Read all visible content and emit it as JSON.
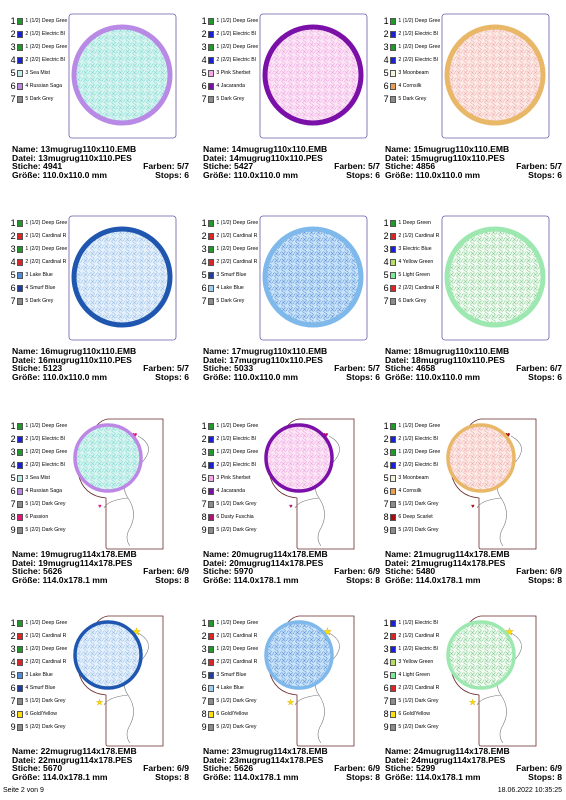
{
  "colors": {
    "Deep Gree": "#1f9a2a",
    "Electric Bl": "#1a1fd8",
    "Sea Mist": "#c2ece8",
    "Russian Saga": "#bd87e6",
    "Dark Grey": "#8c8c8c",
    "Pink Sherbet": "#f7a6e8",
    "Jacaranda": "#7a10a8",
    "Moonbeam": "#f5f2dc",
    "Cornsilk": "#e8a050",
    "Cardinal R": "#e02424",
    "Lake Blue": "#4f8fd6",
    "Smurf Blue": "#1e3fa0",
    "Smurf Blu": "#1e3fa0",
    "Lake Blu": "#9fd0f2",
    "Dark Green": "#1f9a2a",
    "Yellow Green": "#b8e060",
    "Light Green": "#7de89a",
    "Passion": "#e8157a",
    "Dusty Fuschia": "#b0126f",
    "Deep Scarlet": "#a80c10",
    "Gold/Yellow": "#ffe000"
  },
  "cards": [
    {
      "name": "Name: 13mugrug110x110.EMB",
      "datei": "Datei: 13mugrug110x110.PES",
      "stiche": "Stiche: 4941",
      "farben": "Farben: 5/7",
      "groesse": "Größe: 110.0x110.0 mm",
      "stops": "Stops: 6",
      "shape": "square",
      "ring": "#b88ae6",
      "fill": "#d8f4f0",
      "motif": "#7ad8d0",
      "heart": "",
      "legend": [
        {
          "n": "1",
          "label": "1 (1/2) Deep Gree",
          "c": "Deep Gree"
        },
        {
          "n": "2",
          "label": "2 (1/2) Electric Bl",
          "c": "Electric Bl"
        },
        {
          "n": "3",
          "label": "1 (2/2) Deep Gree",
          "c": "Deep Gree"
        },
        {
          "n": "4",
          "label": "2 (2/2) Electric Bl",
          "c": "Electric Bl"
        },
        {
          "n": "5",
          "label": "3 Sea Mist",
          "c": "Sea Mist"
        },
        {
          "n": "6",
          "label": "4 Russian Saga",
          "c": "Russian Saga"
        },
        {
          "n": "7",
          "label": "5 Dark Grey",
          "c": "Dark Grey"
        }
      ]
    },
    {
      "name": "Name: 14mugrug110x110.EMB",
      "datei": "Datei: 14mugrug110x110.PES",
      "stiche": "Stiche: 5427",
      "farben": "Farben: 5/7",
      "groesse": "Größe: 110.0x110.0 mm",
      "stops": "Stops: 6",
      "shape": "square",
      "ring": "#7a10a8",
      "fill": "#fbe6f6",
      "motif": "#f0a0e0",
      "heart": "",
      "legend": [
        {
          "n": "1",
          "label": "1 (1/2) Deep Gree",
          "c": "Deep Gree"
        },
        {
          "n": "2",
          "label": "2 (1/2) Electric Bl",
          "c": "Electric Bl"
        },
        {
          "n": "3",
          "label": "1 (2/2) Deep Gree",
          "c": "Deep Gree"
        },
        {
          "n": "4",
          "label": "2 (2/2) Electric Bl",
          "c": "Electric Bl"
        },
        {
          "n": "5",
          "label": "3 Pink Sherbet",
          "c": "Pink Sherbet"
        },
        {
          "n": "6",
          "label": "4 Jacaranda",
          "c": "Jacaranda"
        },
        {
          "n": "7",
          "label": "5 Dark Grey",
          "c": "Dark Grey"
        }
      ]
    },
    {
      "name": "Name: 15mugrug110x110.EMB",
      "datei": "Datei: 15mugrug110x110.PES",
      "stiche": "Stiche: 4856",
      "farben": "Farben: 5/7",
      "groesse": "Größe: 110.0x110.0 mm",
      "stops": "Stops: 6",
      "shape": "square",
      "ring": "#e8b868",
      "fill": "#fbeae6",
      "motif": "#f0a8a8",
      "heart": "",
      "legend": [
        {
          "n": "1",
          "label": "1 (1/2) Deep Gree",
          "c": "Deep Gree"
        },
        {
          "n": "2",
          "label": "2 (1/2) Electric Bl",
          "c": "Electric Bl"
        },
        {
          "n": "3",
          "label": "1 (2/2) Deep Gree",
          "c": "Deep Gree"
        },
        {
          "n": "4",
          "label": "2 (2/2) Electric Bl",
          "c": "Electric Bl"
        },
        {
          "n": "5",
          "label": "3 Moonbeam",
          "c": "Moonbeam"
        },
        {
          "n": "6",
          "label": "4 Cornsilk",
          "c": "Cornsilk"
        },
        {
          "n": "7",
          "label": "5 Dark Grey",
          "c": "Dark Grey"
        }
      ]
    },
    {
      "name": "Name: 16mugrug110x110.EMB",
      "datei": "Datei: 16mugrug110x110.PES",
      "stiche": "Stiche: 5123",
      "farben": "Farben: 5/7",
      "groesse": "Größe: 110.0x110.0 mm",
      "stops": "Stops: 6",
      "shape": "square",
      "ring": "#1e56b0",
      "fill": "#e6f0fb",
      "motif": "#90bce8",
      "heart": "",
      "legend": [
        {
          "n": "1",
          "label": "1 (1/2) Deep Gree",
          "c": "Deep Gree"
        },
        {
          "n": "2",
          "label": "2 (1/2) Cardinal R",
          "c": "Cardinal R"
        },
        {
          "n": "3",
          "label": "1 (2/2) Deep Gree",
          "c": "Deep Gree"
        },
        {
          "n": "4",
          "label": "2 (2/2) Cardinal R",
          "c": "Cardinal R"
        },
        {
          "n": "5",
          "label": "3 Lake Blue",
          "c": "Lake Blue"
        },
        {
          "n": "6",
          "label": "4 Smurf Blue",
          "c": "Smurf Blue"
        },
        {
          "n": "7",
          "label": "5 Dark Grey",
          "c": "Dark Grey"
        }
      ]
    },
    {
      "name": "Name: 17mugrug110x110.EMB",
      "datei": "Datei: 17mugrug110x110.PES",
      "stiche": "Stiche: 5033",
      "farben": "Farben: 5/7",
      "groesse": "Größe: 110.0x110.0 mm",
      "stops": "Stops: 6",
      "shape": "square",
      "ring": "#7fb8ea",
      "fill": "#c8e2f8",
      "motif": "#5a90d8",
      "heart": "",
      "legend": [
        {
          "n": "1",
          "label": "1 (1/2) Deep Gree",
          "c": "Deep Gree"
        },
        {
          "n": "2",
          "label": "2 (1/2) Cardinal R",
          "c": "Cardinal R"
        },
        {
          "n": "3",
          "label": "1 (2/2) Deep Gree",
          "c": "Deep Gree"
        },
        {
          "n": "4",
          "label": "2 (2/2) Cardinal R",
          "c": "Cardinal R"
        },
        {
          "n": "5",
          "label": "3 Smurf Blue",
          "c": "Smurf Blu"
        },
        {
          "n": "6",
          "label": "4 Lake Blue",
          "c": "Lake Blu"
        },
        {
          "n": "7",
          "label": "5 Dark Grey",
          "c": "Dark Grey"
        }
      ]
    },
    {
      "name": "Name: 18mugrug110x110.EMB",
      "datei": "Datei: 18mugrug110x110.PES",
      "stiche": "Stiche: 4658",
      "farben": "Farben: 6/7",
      "groesse": "Größe: 110.0x110.0 mm",
      "stops": "Stops: 6",
      "shape": "square",
      "ring": "#9de8b0",
      "fill": "#f2fbf2",
      "motif": "#7cc88a",
      "heart": "",
      "legend": [
        {
          "n": "1",
          "label": "1 Deep Green",
          "c": "Dark Green"
        },
        {
          "n": "2",
          "label": "2 (1/2) Cardinal R",
          "c": "Cardinal R"
        },
        {
          "n": "3",
          "label": "3 Electric Blue",
          "c": "Electric Bl"
        },
        {
          "n": "4",
          "label": "4 Yellow Green",
          "c": "Yellow Green"
        },
        {
          "n": "5",
          "label": "5 Light Green",
          "c": "Light Green"
        },
        {
          "n": "6",
          "label": "2 (2/2) Cardinal R",
          "c": "Cardinal R"
        },
        {
          "n": "7",
          "label": "6 Dark Grey",
          "c": "Dark Grey"
        }
      ]
    },
    {
      "name": "Name: 19mugrug114x178.EMB",
      "datei": "Datei: 19mugrug114x178.PES",
      "stiche": "Stiche: 5626",
      "farben": "Farben: 6/9",
      "groesse": "Größe: 114.0x178.1 mm",
      "stops": "Stops: 8",
      "shape": "tall",
      "ring": "#bd87e6",
      "fill": "#d8f4f0",
      "motif": "#7ad8d0",
      "heart": "#e8157a",
      "legend": [
        {
          "n": "1",
          "label": "1 (1/2) Deep Gree",
          "c": "Deep Gree"
        },
        {
          "n": "2",
          "label": "2 (1/2) Electric Bl",
          "c": "Electric Bl"
        },
        {
          "n": "3",
          "label": "1 (2/2) Deep Gree",
          "c": "Deep Gree"
        },
        {
          "n": "4",
          "label": "2 (2/2) Electric Bl",
          "c": "Electric Bl"
        },
        {
          "n": "5",
          "label": "3 Sea Mist",
          "c": "Sea Mist"
        },
        {
          "n": "6",
          "label": "4 Russian Saga",
          "c": "Russian Saga"
        },
        {
          "n": "7",
          "label": "5 (1/2) Dark Grey",
          "c": "Dark Grey"
        },
        {
          "n": "8",
          "label": "6 Passion",
          "c": "Passion"
        },
        {
          "n": "9",
          "label": "5 (2/2) Dark Grey",
          "c": "Dark Grey"
        }
      ]
    },
    {
      "name": "Name: 20mugrug114x178.EMB",
      "datei": "Datei: 20mugrug114x178.PES",
      "stiche": "Stiche: 5970",
      "farben": "Farben: 6/9",
      "groesse": "Größe: 114.0x178.1 mm",
      "stops": "Stops: 8",
      "shape": "tall",
      "ring": "#7a10a8",
      "fill": "#fbe6f6",
      "motif": "#f0a0e0",
      "heart": "#b0126f",
      "legend": [
        {
          "n": "1",
          "label": "1 (1/2) Deep Gree",
          "c": "Deep Gree"
        },
        {
          "n": "2",
          "label": "2 (1/2) Electric Bl",
          "c": "Electric Bl"
        },
        {
          "n": "3",
          "label": "1 (2/2) Deep Gree",
          "c": "Deep Gree"
        },
        {
          "n": "4",
          "label": "2 (2/2) Electric Bl",
          "c": "Electric Bl"
        },
        {
          "n": "5",
          "label": "3 Pink Sherbet",
          "c": "Pink Sherbet"
        },
        {
          "n": "6",
          "label": "4 Jacaranda",
          "c": "Jacaranda"
        },
        {
          "n": "7",
          "label": "5 (1/2) Dark Grey",
          "c": "Dark Grey"
        },
        {
          "n": "8",
          "label": "6 Dusty Fuschia",
          "c": "Dusty Fuschia"
        },
        {
          "n": "9",
          "label": "5 (2/2) Dark Grey",
          "c": "Dark Grey"
        }
      ]
    },
    {
      "name": "Name: 21mugrug114x178.EMB",
      "datei": "Datei: 21mugrug114x178.PES",
      "stiche": "Stiche: 5480",
      "farben": "Farben: 6/9",
      "groesse": "Größe: 114.0x178.1 mm",
      "stops": "Stops: 8",
      "shape": "tall",
      "ring": "#e8b868",
      "fill": "#fbeae6",
      "motif": "#f0a8a8",
      "heart": "#a80c10",
      "legend": [
        {
          "n": "1",
          "label": "1 (1/2) Deep Gree",
          "c": "Deep Gree"
        },
        {
          "n": "2",
          "label": "2 (1/2) Electric Bl",
          "c": "Electric Bl"
        },
        {
          "n": "3",
          "label": "1 (2/2) Deep Gree",
          "c": "Deep Gree"
        },
        {
          "n": "4",
          "label": "2 (2/2) Electric Bl",
          "c": "Electric Bl"
        },
        {
          "n": "5",
          "label": "3 Moonbeam",
          "c": "Moonbeam"
        },
        {
          "n": "6",
          "label": "4 Cornsilk",
          "c": "Cornsilk"
        },
        {
          "n": "7",
          "label": "5 (1/2) Dark Grey",
          "c": "Dark Grey"
        },
        {
          "n": "8",
          "label": "6 Deep Scarlet",
          "c": "Deep Scarlet"
        },
        {
          "n": "9",
          "label": "5 (2/2) Dark Grey",
          "c": "Dark Grey"
        }
      ]
    },
    {
      "name": "Name: 22mugrug114x178.EMB",
      "datei": "Datei: 22mugrug114x178.PES",
      "stiche": "Stiche: 5670",
      "farben": "Farben: 6/9",
      "groesse": "Größe: 114.0x178.1 mm",
      "stops": "Stops: 8",
      "shape": "tall",
      "ring": "#1e56b0",
      "fill": "#e6f0fb",
      "motif": "#90bce8",
      "heart": "star",
      "legend": [
        {
          "n": "1",
          "label": "1 (1/2) Deep Gree",
          "c": "Deep Gree"
        },
        {
          "n": "2",
          "label": "2 (1/2) Cardinal R",
          "c": "Cardinal R"
        },
        {
          "n": "3",
          "label": "1 (2/2) Deep Gree",
          "c": "Deep Gree"
        },
        {
          "n": "4",
          "label": "2 (2/2) Cardinal R",
          "c": "Cardinal R"
        },
        {
          "n": "5",
          "label": "3 Lake Blue",
          "c": "Lake Blue"
        },
        {
          "n": "6",
          "label": "4 Smurf Blue",
          "c": "Smurf Blue"
        },
        {
          "n": "7",
          "label": "5 (1/2) Dark Grey",
          "c": "Dark Grey"
        },
        {
          "n": "8",
          "label": "6 Gold/Yellow",
          "c": "Gold/Yellow"
        },
        {
          "n": "9",
          "label": "5 (2/2) Dark Grey",
          "c": "Dark Grey"
        }
      ]
    },
    {
      "name": "Name: 23mugrug114x178.EMB",
      "datei": "Datei: 23mugrug114x178.PES",
      "stiche": "Stiche: 5626",
      "farben": "Farben: 6/9",
      "groesse": "Größe: 114.0x178.1 mm",
      "stops": "Stops: 8",
      "shape": "tall",
      "ring": "#7fb8ea",
      "fill": "#c8e2f8",
      "motif": "#5a90d8",
      "heart": "star",
      "legend": [
        {
          "n": "1",
          "label": "1 (1/2) Deep Gree",
          "c": "Deep Gree"
        },
        {
          "n": "2",
          "label": "2 (1/2) Cardinal R",
          "c": "Cardinal R"
        },
        {
          "n": "3",
          "label": "1 (2/2) Deep Gree",
          "c": "Deep Gree"
        },
        {
          "n": "4",
          "label": "2 (2/2) Cardinal R",
          "c": "Cardinal R"
        },
        {
          "n": "5",
          "label": "3 Smurf Blue",
          "c": "Smurf Blu"
        },
        {
          "n": "6",
          "label": "4 Lake Blue",
          "c": "Lake Blu"
        },
        {
          "n": "7",
          "label": "5 (1/2) Dark Grey",
          "c": "Dark Grey"
        },
        {
          "n": "8",
          "label": "6 Gold/Yellow",
          "c": "Gold/Yellow"
        },
        {
          "n": "9",
          "label": "5 (2/2) Dark Grey",
          "c": "Dark Grey"
        }
      ]
    },
    {
      "name": "Name: 24mugrug114x178.EMB",
      "datei": "Datei: 24mugrug114x178.PES",
      "stiche": "Stiche: 5299",
      "farben": "Farben: 6/9",
      "groesse": "Größe: 114.0x178.1 mm",
      "stops": "Stops: 8",
      "shape": "tall",
      "ring": "#9de8b0",
      "fill": "#f2fbf2",
      "motif": "#7cc88a",
      "heart": "star",
      "legend": [
        {
          "n": "1",
          "label": "1 (1/2) Electric Bl",
          "c": "Electric Bl"
        },
        {
          "n": "2",
          "label": "2 (1/2) Cardinal R",
          "c": "Cardinal R"
        },
        {
          "n": "3",
          "label": "1 (2/2) Electric Bl",
          "c": "Electric Bl"
        },
        {
          "n": "4",
          "label": "3 Yellow Green",
          "c": "Yellow Green"
        },
        {
          "n": "5",
          "label": "4 Light Green",
          "c": "Light Green"
        },
        {
          "n": "6",
          "label": "2 (2/2) Cardinal R",
          "c": "Cardinal R"
        },
        {
          "n": "7",
          "label": "5 (1/2) Dark Grey",
          "c": "Dark Grey"
        },
        {
          "n": "8",
          "label": "6 Gold/Yellow",
          "c": "Gold/Yellow"
        },
        {
          "n": "9",
          "label": "5 (2/2) Dark Grey",
          "c": "Dark Grey"
        }
      ]
    }
  ],
  "footer": {
    "page": "Seite 2 von 9",
    "timestamp": "18.06.2022 10:35:25"
  }
}
